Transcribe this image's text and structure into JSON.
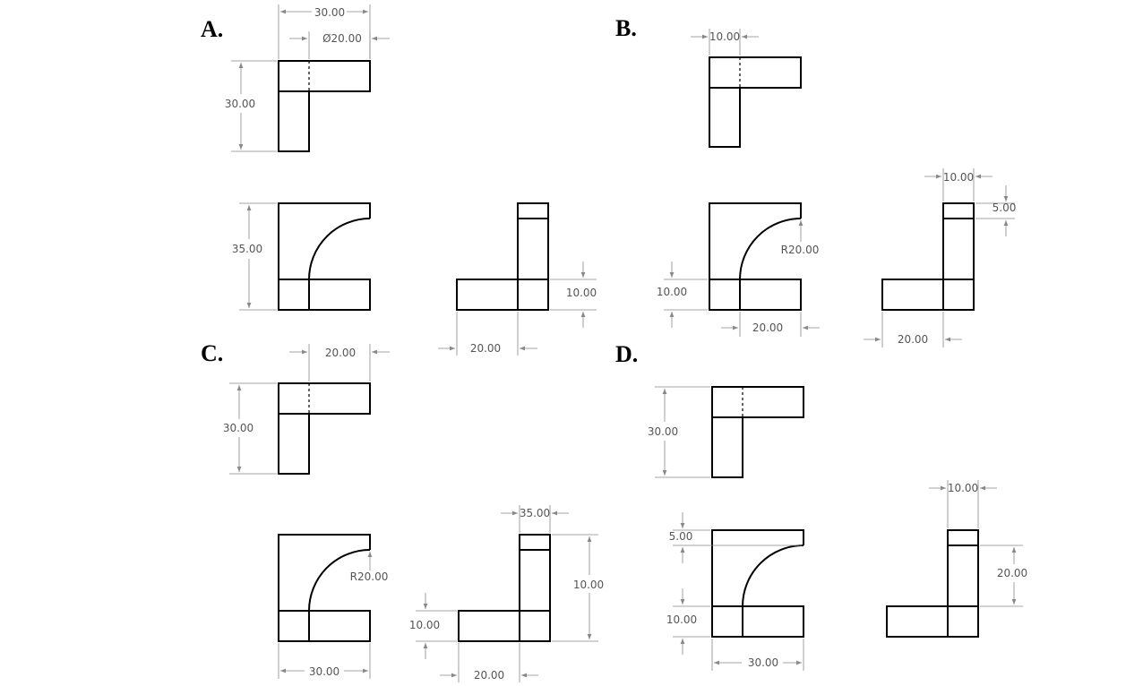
{
  "options": [
    {
      "label": "A.",
      "dims": [
        "30.00",
        "Ø20.00",
        "30.00",
        "35.00",
        "10.00",
        "20.00"
      ]
    },
    {
      "label": "B.",
      "dims": [
        "10.00",
        "10.00",
        "5.00",
        "R20.00",
        "10.00",
        "20.00",
        "20.00"
      ]
    },
    {
      "label": "C.",
      "dims": [
        "20.00",
        "30.00",
        "R20.00",
        "10.00",
        "35.00",
        "10.00",
        "30.00",
        "20.00"
      ]
    },
    {
      "label": "D.",
      "dims": [
        "30.00",
        "10.00",
        "5.00",
        "20.00",
        "10.00",
        "30.00"
      ]
    }
  ]
}
